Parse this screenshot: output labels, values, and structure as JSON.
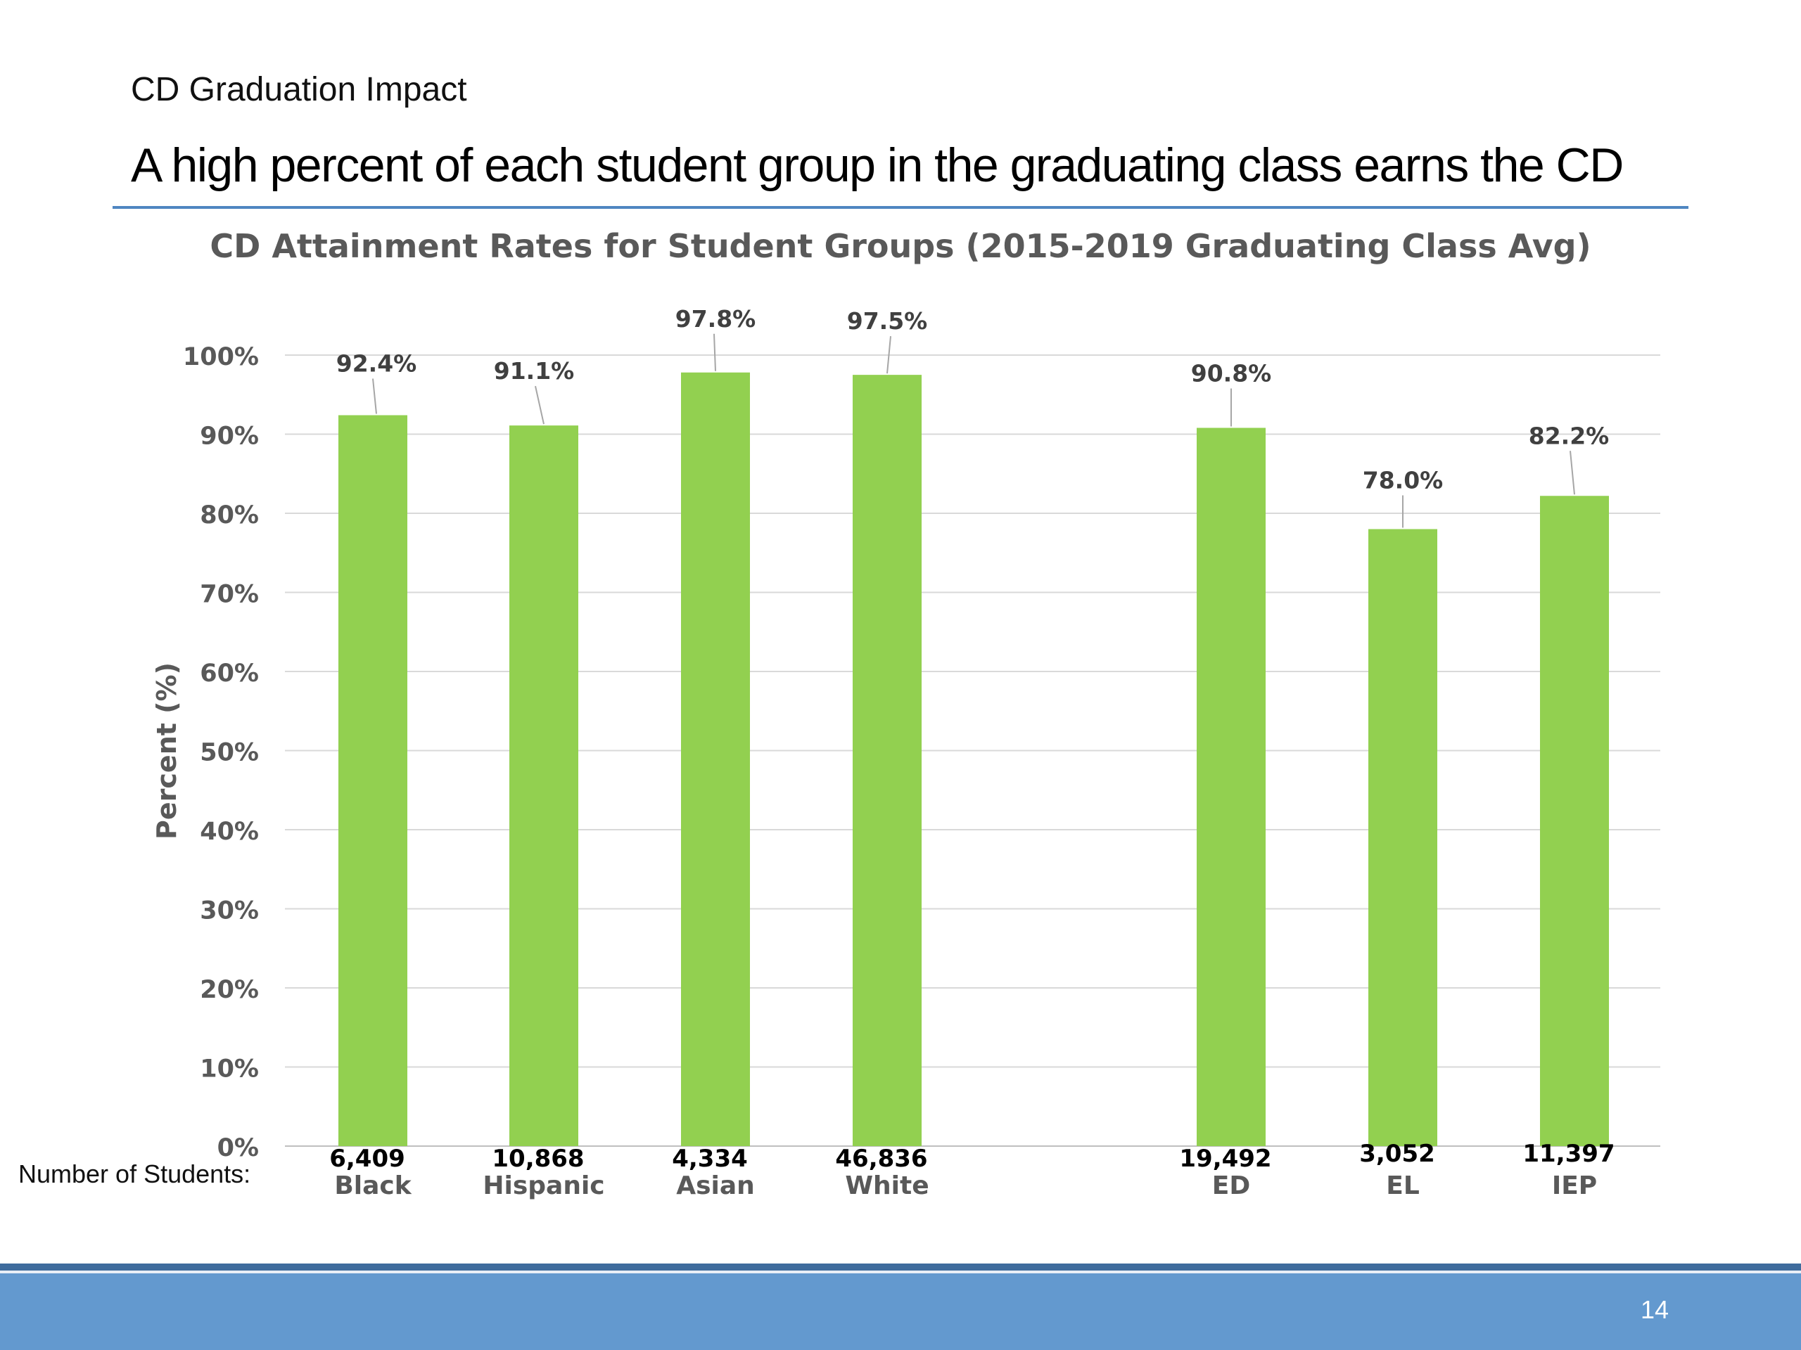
{
  "slide": {
    "section_label": "CD Graduation Impact",
    "title": "A high percent of each student group in the graduating class earns the CD",
    "page_number": "14",
    "colors": {
      "title_rule": "#4f86c1",
      "footer": "#6399cf",
      "bar": "#92d050"
    }
  },
  "chart_data": {
    "type": "bar",
    "title": "CD Attainment Rates for Student Groups (2015-2019 Graduating Class Avg)",
    "ylabel": "Percent (%)",
    "xlabel": "",
    "ylim": [
      0,
      100
    ],
    "y_ticks": [
      0,
      10,
      20,
      30,
      40,
      50,
      60,
      70,
      80,
      90,
      100
    ],
    "y_tick_format": "{v}%",
    "grid": true,
    "row_label": "Number of Students:",
    "categories": [
      "Black",
      "Hispanic",
      "Asian",
      "White",
      "ED",
      "EL",
      "IEP"
    ],
    "values": [
      92.4,
      91.1,
      97.8,
      97.5,
      90.8,
      78.0,
      82.2
    ],
    "data_labels": [
      "92.4%",
      "91.1%",
      "97.8%",
      "97.5%",
      "90.8%",
      "78.0%",
      "82.2%"
    ],
    "student_counts": [
      "6,409",
      "10,868",
      "4,334",
      "46,836",
      "19,492",
      "3,052",
      "11,397"
    ],
    "bar_color": "#92d050"
  }
}
